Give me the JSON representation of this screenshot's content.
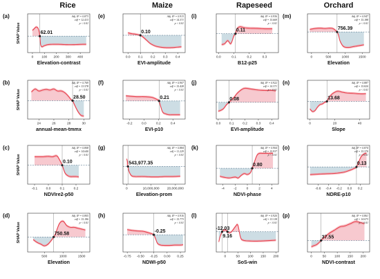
{
  "figure": {
    "column_titles": [
      "Rice",
      "Maize",
      "Rapeseed",
      "Orchard"
    ],
    "y_axis_label": "SHAP Value"
  },
  "style": {
    "line_color": "#e8404e",
    "ci_color": "#f2a0a8",
    "positive_fill": "#f7c9cf",
    "negative_fill": "#cddde4",
    "threshold_point": "#222222"
  },
  "chart_data": [
    {
      "id": "a",
      "type": "line",
      "xlabel": "Elevation-contrast",
      "xlim": [
        -40,
        480
      ],
      "ylim": [
        -1.0,
        1.35
      ],
      "xticks": [
        "0",
        "100",
        "200",
        "300",
        "400"
      ],
      "xtick_vals": [
        0,
        100,
        200,
        300,
        400
      ],
      "stats": [
        "Adj. R² = 0.873",
        "edf = 12.413",
        "p < 0.01"
      ],
      "threshold": 62.01,
      "threshold_label": "62.01",
      "x": [
        0,
        15,
        30,
        45,
        55,
        62,
        66,
        70,
        80,
        100,
        130,
        170,
        220,
        280,
        350,
        420,
        450
      ],
      "y": [
        0.35,
        0.45,
        0.55,
        0.5,
        0.3,
        0.0,
        -0.35,
        -0.55,
        -0.65,
        -0.58,
        -0.52,
        -0.5,
        -0.5,
        -0.52,
        -0.52,
        -0.5,
        -0.5
      ]
    },
    {
      "id": "b",
      "type": "line",
      "xlabel": "annual-mean-tmmx",
      "xlim": [
        22.5,
        30.8
      ],
      "ylim": [
        -0.95,
        1.05
      ],
      "xticks": [
        "24",
        "26",
        "28",
        "30"
      ],
      "xtick_vals": [
        24,
        26,
        28,
        30
      ],
      "stats": [
        "Adj. R² = 0.769",
        "edf = 13.578",
        "p < 0.01"
      ],
      "threshold": 28.5,
      "threshold_label": "28.50",
      "x": [
        23,
        23.5,
        24,
        24.5,
        25,
        25.5,
        26,
        26.5,
        27,
        27.5,
        28,
        28.3,
        28.5,
        28.8,
        29.2,
        29.6,
        30
      ],
      "y": [
        0.45,
        0.6,
        0.5,
        0.55,
        0.58,
        0.55,
        0.6,
        0.5,
        0.5,
        0.4,
        0.2,
        0.05,
        0.0,
        -0.25,
        -0.55,
        -0.75,
        -0.8
      ]
    },
    {
      "id": "c",
      "type": "line",
      "xlabel": "NDVIre2-p50",
      "xlim": [
        -0.15,
        0.3
      ],
      "ylim": [
        -1.0,
        1.05
      ],
      "xticks": [
        "-0.1",
        "0.0",
        "0.1",
        "0.2"
      ],
      "xtick_vals": [
        -0.1,
        0,
        0.1,
        0.2
      ],
      "stats": [
        "Adj. R² = 0.808",
        "edf = 14.640",
        "p < 0.01"
      ],
      "threshold": 0.1,
      "threshold_label": "0.10",
      "x": [
        -0.1,
        -0.07,
        -0.04,
        0,
        0.03,
        0.06,
        0.08,
        0.1,
        0.12,
        0.14,
        0.16,
        0.18,
        0.2,
        0.22
      ],
      "y": [
        0.45,
        0.45,
        0.45,
        0.47,
        0.45,
        0.5,
        0.3,
        0.0,
        -0.4,
        -0.55,
        -0.6,
        -0.6,
        -0.6,
        -0.62
      ]
    },
    {
      "id": "d",
      "type": "line",
      "xlabel": "Elevation",
      "xlim": [
        50,
        1720
      ],
      "ylim": [
        -0.85,
        1.35
      ],
      "xticks": [
        "500",
        "1000",
        "1500"
      ],
      "xtick_vals": [
        500,
        1000,
        1500
      ],
      "stats": [
        "Adj. R² = 0.805",
        "edf = 15.186",
        "p < 0.01"
      ],
      "threshold": 750.58,
      "threshold_label": "750.58",
      "x": [
        200,
        300,
        400,
        500,
        600,
        700,
        750,
        800,
        900,
        1000,
        1100,
        1200,
        1300,
        1400,
        1500,
        1600
      ],
      "y": [
        -0.15,
        -0.3,
        -0.4,
        -0.5,
        -0.4,
        -0.15,
        0.0,
        0.2,
        0.75,
        0.9,
        0.65,
        0.55,
        0.55,
        0.5,
        0.45,
        0.4
      ]
    },
    {
      "id": "e",
      "type": "line",
      "xlabel": "EVI-amplitude",
      "xlim": [
        -0.04,
        0.46
      ],
      "ylim": [
        -1.05,
        1.3
      ],
      "xticks": [
        "0.0",
        "0.1",
        "0.2",
        "0.3",
        "0.4"
      ],
      "xtick_vals": [
        0,
        0.1,
        0.2,
        0.3,
        0.4
      ],
      "stats": [
        "Adj. R² = 0.913",
        "edf = 14.371",
        "p < 0.01"
      ],
      "threshold": 0.1,
      "threshold_label": "0.10",
      "x": [
        0.0,
        0.03,
        0.06,
        0.08,
        0.1,
        0.12,
        0.15,
        0.18,
        0.22,
        0.26,
        0.3,
        0.35,
        0.4,
        0.43
      ],
      "y": [
        0.15,
        0.1,
        0.07,
        0.04,
        0.0,
        -0.1,
        -0.3,
        -0.5,
        -0.65,
        -0.72,
        -0.75,
        -0.75,
        -0.72,
        -0.7
      ]
    },
    {
      "id": "f",
      "type": "line",
      "xlabel": "EVI-p10",
      "xlim": [
        -0.29,
        0.57
      ],
      "ylim": [
        -1.05,
        1.2
      ],
      "xticks": [
        "-0.2",
        "0.0",
        "0.2",
        "0.4"
      ],
      "xtick_vals": [
        -0.2,
        0,
        0.2,
        0.4
      ],
      "stats": [
        "Adj. R² = 0.907",
        "edf = 15.428",
        "p < 0.01"
      ],
      "threshold": 0.21,
      "threshold_label": "0.21",
      "x": [
        -0.25,
        -0.2,
        -0.1,
        0.0,
        0.1,
        0.15,
        0.2,
        0.21,
        0.23,
        0.26,
        0.3,
        0.35,
        0.4,
        0.45,
        0.5
      ],
      "y": [
        0.3,
        0.28,
        0.25,
        0.25,
        0.22,
        0.15,
        0.05,
        0.0,
        -0.3,
        -0.65,
        -0.75,
        -0.8,
        -0.8,
        -0.8,
        -0.8
      ]
    },
    {
      "id": "g",
      "type": "line",
      "xlabel": "Elevation-prom",
      "xlim": [
        -1500000,
        24000000
      ],
      "ylim": [
        -1.05,
        1.25
      ],
      "xticks": [
        "0",
        "10,000,000",
        "20,000,000"
      ],
      "xtick_vals": [
        0,
        10000000,
        20000000
      ],
      "stats": [
        "Adj. R² = 0.884",
        "edf = 11.229",
        "p < 0.01"
      ],
      "threshold": 543977.35,
      "threshold_label": "543,977.35",
      "x": [
        0,
        300000,
        543977,
        1000000,
        2000000,
        3500000,
        5000000,
        7000000,
        10000000,
        13000000,
        16000000,
        19000000,
        22000000
      ],
      "y": [
        0.45,
        0.3,
        0.0,
        -0.3,
        -0.55,
        -0.6,
        -0.6,
        -0.6,
        -0.62,
        -0.62,
        -0.6,
        -0.6,
        -0.58
      ]
    },
    {
      "id": "h",
      "type": "line",
      "xlabel": "NDWI-p50",
      "xlim": [
        -0.83,
        0.34
      ],
      "ylim": [
        -1.0,
        1.25
      ],
      "xticks": [
        "-0.75",
        "-0.50",
        "-0.25",
        "0.00",
        "0.25"
      ],
      "xtick_vals": [
        -0.75,
        -0.5,
        -0.25,
        0,
        0.25
      ],
      "stats": [
        "Adj. R² = 0.916",
        "edf = 15.773",
        "p < 0.01"
      ],
      "threshold": -0.25,
      "threshold_label": "-0.25",
      "x": [
        -0.75,
        -0.65,
        -0.55,
        -0.45,
        -0.35,
        -0.28,
        -0.25,
        -0.22,
        -0.18,
        -0.12,
        -0.05,
        0.05,
        0.15,
        0.25,
        0.3
      ],
      "y": [
        0.3,
        0.25,
        0.22,
        0.2,
        0.12,
        0.05,
        0.0,
        -0.2,
        -0.5,
        -0.6,
        -0.62,
        -0.62,
        -0.6,
        -0.6,
        -0.58
      ]
    },
    {
      "id": "i",
      "type": "line",
      "xlabel": "B12-p25",
      "xlim": [
        -0.015,
        0.39
      ],
      "ylim": [
        -0.95,
        1.0
      ],
      "xticks": [
        "0.0",
        "0.1",
        "0.2",
        "0.3"
      ],
      "xtick_vals": [
        0,
        0.1,
        0.2,
        0.3
      ],
      "stats": [
        "Adj. R² = 0.936",
        "edf = 15.669",
        "p < 0.01"
      ],
      "threshold": 0.11,
      "threshold_label": "0.11",
      "x": [
        0.02,
        0.04,
        0.06,
        0.08,
        0.1,
        0.11,
        0.12,
        0.14,
        0.17,
        0.2,
        0.25,
        0.3,
        0.35
      ],
      "y": [
        -0.55,
        -0.5,
        -0.35,
        -0.5,
        -0.1,
        0.0,
        0.25,
        0.35,
        0.3,
        0.28,
        0.27,
        0.25,
        0.25
      ]
    },
    {
      "id": "j",
      "type": "line",
      "xlabel": "EVI-amplitude",
      "xlim": [
        -0.015,
        0.45
      ],
      "ylim": [
        -0.95,
        1.25
      ],
      "xticks": [
        "0.0",
        "0.1",
        "0.2",
        "0.3",
        "0.4"
      ],
      "xtick_vals": [
        0,
        0.1,
        0.2,
        0.3,
        0.4
      ],
      "stats": [
        "Adj. R² = 0.922",
        "edf = 14.371",
        "p < 0.01"
      ],
      "threshold": 0.08,
      "threshold_label": "0.08",
      "x": [
        0.0,
        0.02,
        0.04,
        0.06,
        0.08,
        0.1,
        0.12,
        0.14,
        0.17,
        0.2,
        0.25,
        0.3,
        0.35,
        0.4,
        0.43
      ],
      "y": [
        -0.5,
        -0.45,
        -0.35,
        -0.15,
        0.0,
        0.15,
        0.3,
        0.5,
        0.7,
        0.8,
        0.75,
        0.7,
        0.68,
        0.68,
        0.65
      ]
    },
    {
      "id": "k",
      "type": "line",
      "xlabel": "NDVI-phase",
      "xlim": [
        -5.1,
        5.1
      ],
      "ylim": [
        -0.9,
        1.3
      ],
      "xticks": [
        "-4",
        "-2",
        "0",
        "2",
        "4"
      ],
      "xtick_vals": [
        -4,
        -2,
        0,
        2,
        4
      ],
      "stats": [
        "Adj. R² = 0.904",
        "edf = 15.937",
        "p < 0.01"
      ],
      "threshold": 0.8,
      "threshold_label": "0.80",
      "x": [
        -4.5,
        -4,
        -3,
        -2,
        -1.5,
        -1,
        -0.5,
        0,
        0.5,
        0.8,
        1.2,
        1.6,
        2,
        2.5,
        3,
        3.5,
        4.2
      ],
      "y": [
        -0.45,
        -0.5,
        -0.55,
        -0.5,
        -0.55,
        -0.4,
        -0.3,
        -0.35,
        -0.25,
        0.0,
        0.4,
        0.75,
        0.85,
        0.85,
        0.85,
        0.85,
        0.85
      ]
    },
    {
      "id": "l",
      "type": "line",
      "xlabel": "SoS-win",
      "xlim": [
        -35,
        210
      ],
      "ylim": [
        -1.2,
        1.1
      ],
      "xticks": [
        "0",
        "50",
        "100",
        "150",
        "200"
      ],
      "xtick_vals": [
        0,
        50,
        100,
        150,
        200
      ],
      "stats": [
        "Adj. R² = 0.920",
        "edf = 15.118",
        "p < 0.01"
      ],
      "thresholds": [
        -12.03,
        9.16
      ],
      "threshold_labels": [
        "-12.03",
        "9.16"
      ],
      "x": [
        -25,
        -20,
        -15,
        -12.03,
        -5,
        0,
        5,
        9.16,
        15,
        25,
        40,
        50,
        60,
        70,
        100,
        140,
        180,
        200
      ],
      "y": [
        -0.6,
        -0.3,
        -0.1,
        0.0,
        0.1,
        0.12,
        0.08,
        0.0,
        -0.05,
        0.0,
        0.3,
        0.4,
        -0.3,
        -0.5,
        -0.55,
        -0.55,
        -0.52,
        -0.5
      ]
    },
    {
      "id": "m",
      "type": "line",
      "xlabel": "Elevation",
      "xlim": [
        -120,
        1720
      ],
      "ylim": [
        -1.2,
        1.05
      ],
      "xticks": [
        "0",
        "500",
        "1000",
        "1500"
      ],
      "xtick_vals": [
        0,
        500,
        1000,
        1500
      ],
      "stats": [
        "Adj. R² = 0.947",
        "edf = 15.188",
        "p < 0.01"
      ],
      "threshold": 756.39,
      "threshold_label": "756.39",
      "x": [
        -50,
        100,
        250,
        400,
        550,
        650,
        756,
        800,
        850,
        950,
        1100,
        1250,
        1400,
        1550
      ],
      "y": [
        0.15,
        0.2,
        0.22,
        0.2,
        0.22,
        0.18,
        0.0,
        -0.2,
        -0.55,
        -0.85,
        -0.9,
        -0.85,
        -0.8,
        -0.75
      ]
    },
    {
      "id": "n",
      "type": "line",
      "xlabel": "Slope",
      "xlim": [
        -2,
        48
      ],
      "ylim": [
        -1.05,
        1.25
      ],
      "xticks": [
        "0",
        "20",
        "40"
      ],
      "xtick_vals": [
        0,
        20,
        40
      ],
      "stats": [
        "Adj. R² = 0.887",
        "edf = 15.820",
        "p < 0.01"
      ],
      "threshold": 13.68,
      "threshold_label": "13.68",
      "x": [
        0,
        2,
        4,
        6,
        8,
        10,
        12,
        13.68,
        15,
        18,
        22,
        26,
        30,
        35,
        40,
        45
      ],
      "y": [
        -0.45,
        -0.6,
        -0.55,
        -0.35,
        -0.2,
        -0.15,
        -0.05,
        0.0,
        0.2,
        0.45,
        0.6,
        0.55,
        0.5,
        0.48,
        0.45,
        0.45
      ]
    },
    {
      "id": "o",
      "type": "line",
      "xlabel": "NDRE-p10",
      "xlim": [
        -0.8,
        0.38
      ],
      "ylim": [
        -1.0,
        1.25
      ],
      "xticks": [
        "-0.6",
        "-0.4",
        "-0.2",
        "0.0",
        "0.2"
      ],
      "xtick_vals": [
        -0.6,
        -0.4,
        -0.2,
        0,
        0.2
      ],
      "stats": [
        "Adj. R² = 0.874",
        "edf = 15.370",
        "p < 0.01"
      ],
      "threshold": 0.13,
      "threshold_label": "0.13",
      "x": [
        -0.75,
        -0.6,
        -0.45,
        -0.3,
        -0.2,
        -0.1,
        0.0,
        0.08,
        0.13,
        0.18,
        0.22,
        0.27,
        0.32
      ],
      "y": [
        -0.45,
        -0.42,
        -0.4,
        -0.38,
        -0.35,
        -0.3,
        -0.2,
        -0.1,
        0.0,
        0.35,
        0.6,
        0.75,
        0.8
      ]
    },
    {
      "id": "p",
      "type": "line",
      "xlabel": "NDVI-contrast",
      "xlim": [
        -15,
        225
      ],
      "ylim": [
        -0.55,
        1.3
      ],
      "xticks": [
        "0",
        "50",
        "100",
        "150",
        "200"
      ],
      "xtick_vals": [
        0,
        50,
        100,
        150,
        200
      ],
      "stats": [
        "Adj. R² = 0.861",
        "edf = 14.073",
        "p < 0.01"
      ],
      "threshold": 37.55,
      "threshold_label": "37.55",
      "x": [
        0,
        10,
        20,
        30,
        37.55,
        45,
        55,
        70,
        90,
        110,
        130,
        150,
        170,
        190,
        205
      ],
      "y": [
        -0.3,
        -0.25,
        -0.2,
        -0.1,
        0.0,
        0.1,
        0.2,
        0.35,
        0.5,
        0.65,
        0.7,
        0.8,
        0.9,
        0.85,
        0.8
      ]
    }
  ]
}
